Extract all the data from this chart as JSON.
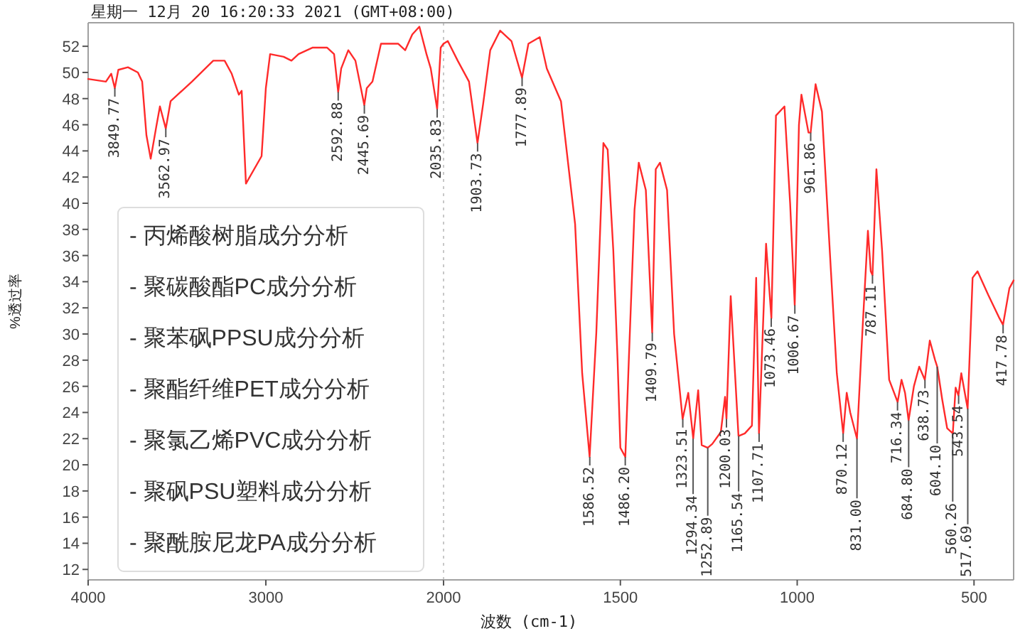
{
  "chart_data": [
    {
      "type": "line",
      "title": "星期一 12月 20 16:20:33 2021 (GMT+08:00)",
      "ylabel": "%透过率",
      "x": [
        4000,
        3900,
        3870,
        3850,
        3830,
        3776,
        3720,
        3696,
        3672,
        3648,
        3630,
        3616,
        3596,
        3563,
        3536,
        3416,
        3296,
        3232,
        3192,
        3152,
        3136,
        3112,
        3024,
        3000,
        2976,
        2900,
        2856,
        2816,
        2736,
        2656,
        2616,
        2593,
        2576,
        2536,
        2496,
        2446,
        2432,
        2400,
        2352,
        2256,
        2216,
        2176,
        2136,
        2096,
        2072,
        2036,
        2016,
        2000
      ],
      "series": [
        {
          "color": "#ff2a2a",
          "values": [
            49.5,
            49.3,
            49.9,
            48.8,
            50.2,
            50.4,
            50.0,
            49.3,
            45.2,
            43.4,
            44.8,
            45.9,
            47.4,
            45.7,
            47.8,
            49.3,
            50.9,
            50.9,
            49.9,
            48.3,
            48.6,
            41.5,
            43.6,
            48.8,
            51.4,
            51.2,
            50.9,
            51.4,
            51.9,
            51.9,
            51.4,
            48.5,
            50.3,
            51.7,
            50.9,
            47.5,
            48.8,
            49.3,
            52.2,
            52.2,
            51.7,
            52.9,
            53.5,
            51.4,
            50.3,
            47.2,
            51.9,
            52.2
          ]
        }
      ],
      "xlim": [
        4000,
        2000
      ],
      "ylim": [
        11.2,
        53.8
      ],
      "xticks": [
        4000,
        3000,
        2000
      ],
      "yticks": [
        12,
        14,
        16,
        18,
        20,
        22,
        24,
        26,
        28,
        30,
        32,
        34,
        36,
        38,
        40,
        42,
        44,
        46,
        48,
        50,
        52
      ],
      "ref_lines": [
        {
          "axis": "x",
          "value": 2000,
          "color": "#c8c8c8",
          "line_style": "dotted"
        }
      ],
      "grid": false,
      "annotations": [
        {
          "text": "3849.77",
          "x": 3849.77,
          "y": 48.8
        },
        {
          "text": "3562.97",
          "x": 3562.97,
          "y": 45.7
        },
        {
          "text": "2592.88",
          "x": 2592.88,
          "y": 48.5
        },
        {
          "text": "2445.69",
          "x": 2445.69,
          "y": 47.5
        },
        {
          "text": "2035.83",
          "x": 2035.83,
          "y": 47.2
        },
        "- 丙烯酸树脂成分分析",
        "- 聚碳酸酯PC成分分析",
        "- 聚苯砜PPSU成分分析",
        "- 聚酯纤维PET成分分析",
        "- 聚氯乙烯PVC成分分析",
        "- 聚砜PSU塑料成分分析",
        "- 聚酰胺尼龙PA成分分析"
      ]
    },
    {
      "type": "line",
      "xlabel": "波数 (cm-1)",
      "x": [
        2000,
        1988,
        1960,
        1928,
        1904,
        1888,
        1868,
        1840,
        1808,
        1778,
        1760,
        1728,
        1708,
        1668,
        1628,
        1608,
        1587,
        1568,
        1548,
        1536,
        1520,
        1508,
        1500,
        1486,
        1476,
        1460,
        1448,
        1428,
        1410,
        1400,
        1388,
        1368,
        1348,
        1324,
        1308,
        1294,
        1280,
        1270,
        1253,
        1240,
        1216,
        1204,
        1200,
        1188,
        1166,
        1148,
        1128,
        1116,
        1108,
        1088,
        1073,
        1060,
        1036,
        1020,
        1007,
        995,
        988,
        968,
        962,
        948,
        930,
        905,
        888,
        870,
        860,
        850,
        831,
        816,
        800,
        792,
        787,
        776,
        760,
        740,
        716,
        705,
        695,
        685,
        670,
        655,
        639,
        625,
        610,
        604,
        590,
        576,
        560,
        552,
        544,
        536,
        518,
        504,
        490,
        460,
        428,
        418,
        400,
        388
      ],
      "series": [
        {
          "color": "#ff2a2a",
          "values": [
            52.2,
            52.4,
            50.9,
            49.3,
            44.6,
            47.6,
            51.7,
            53.2,
            52.4,
            49.6,
            52.2,
            52.7,
            50.3,
            47.8,
            38.4,
            27.0,
            20.6,
            30.1,
            44.6,
            44.1,
            36.4,
            28.1,
            21.3,
            20.6,
            28.1,
            39.5,
            43.1,
            41.0,
            30.1,
            42.6,
            43.1,
            41.0,
            30.0,
            23.5,
            25.5,
            22.0,
            25.7,
            21.5,
            21.3,
            21.6,
            22.5,
            25.2,
            23.5,
            32.9,
            22.2,
            22.4,
            23.0,
            34.3,
            22.4,
            36.9,
            31.2,
            46.7,
            47.4,
            40.0,
            32.2,
            46.0,
            48.3,
            45.4,
            45.4,
            49.1,
            47.0,
            35.0,
            27.0,
            22.4,
            25.5,
            24.0,
            22.0,
            30.0,
            37.9,
            34.8,
            34.5,
            42.6,
            36.4,
            26.5,
            24.8,
            26.5,
            25.5,
            23.4,
            26.0,
            27.5,
            26.5,
            29.5,
            28.0,
            27.5,
            25.0,
            22.8,
            22.4,
            25.9,
            25.3,
            27.0,
            24.3,
            34.3,
            34.8,
            33.0,
            31.2,
            30.7,
            33.5,
            34.1
          ]
        }
      ],
      "xlim": [
        2000,
        388
      ],
      "ylim": [
        11.2,
        53.8
      ],
      "xticks": [
        1500,
        1000,
        500
      ],
      "tick_labels": "x",
      "grid": false,
      "annotations": [
        {
          "text": "1903.73",
          "x": 1903.73,
          "y": 44.6
        },
        {
          "text": "1777.89",
          "x": 1777.89,
          "y": 49.6
        },
        {
          "text": "1586.52",
          "x": 1586.52,
          "y": 20.6
        },
        {
          "text": "1486.20",
          "x": 1486.2,
          "y": 20.6
        },
        {
          "text": "1409.79",
          "x": 1409.79,
          "y": 30.1
        },
        {
          "text": "1323.51",
          "x": 1323.51,
          "y": 23.5
        },
        {
          "text": "1294.34",
          "x": 1294.34,
          "y": 22.0
        },
        {
          "text": "1252.89",
          "x": 1252.89,
          "y": 21.3
        },
        {
          "text": "1200.03",
          "x": 1200.03,
          "y": 23.5
        },
        {
          "text": "1165.54",
          "x": 1165.54,
          "y": 22.2
        },
        {
          "text": "1107.71",
          "x": 1107.71,
          "y": 22.4
        },
        {
          "text": "1073.46",
          "x": 1073.46,
          "y": 31.2
        },
        {
          "text": "1006.67",
          "x": 1006.67,
          "y": 32.2
        },
        {
          "text": "961.86",
          "x": 961.86,
          "y": 45.4
        },
        {
          "text": "870.12",
          "x": 870.12,
          "y": 22.4
        },
        {
          "text": "831.00",
          "x": 831.0,
          "y": 22.0
        },
        {
          "text": "787.11",
          "x": 787.11,
          "y": 34.5
        },
        {
          "text": "716.34",
          "x": 716.34,
          "y": 24.8
        },
        {
          "text": "684.80",
          "x": 684.8,
          "y": 23.4
        },
        {
          "text": "638.73",
          "x": 638.73,
          "y": 26.5
        },
        {
          "text": "604.10",
          "x": 604.1,
          "y": 27.5
        },
        {
          "text": "560.26",
          "x": 560.26,
          "y": 22.4
        },
        {
          "text": "543.54",
          "x": 543.54,
          "y": 25.3
        },
        {
          "text": "517.69",
          "x": 517.69,
          "y": 24.3
        },
        {
          "text": "417.78",
          "x": 417.78,
          "y": 30.7
        }
      ]
    }
  ]
}
